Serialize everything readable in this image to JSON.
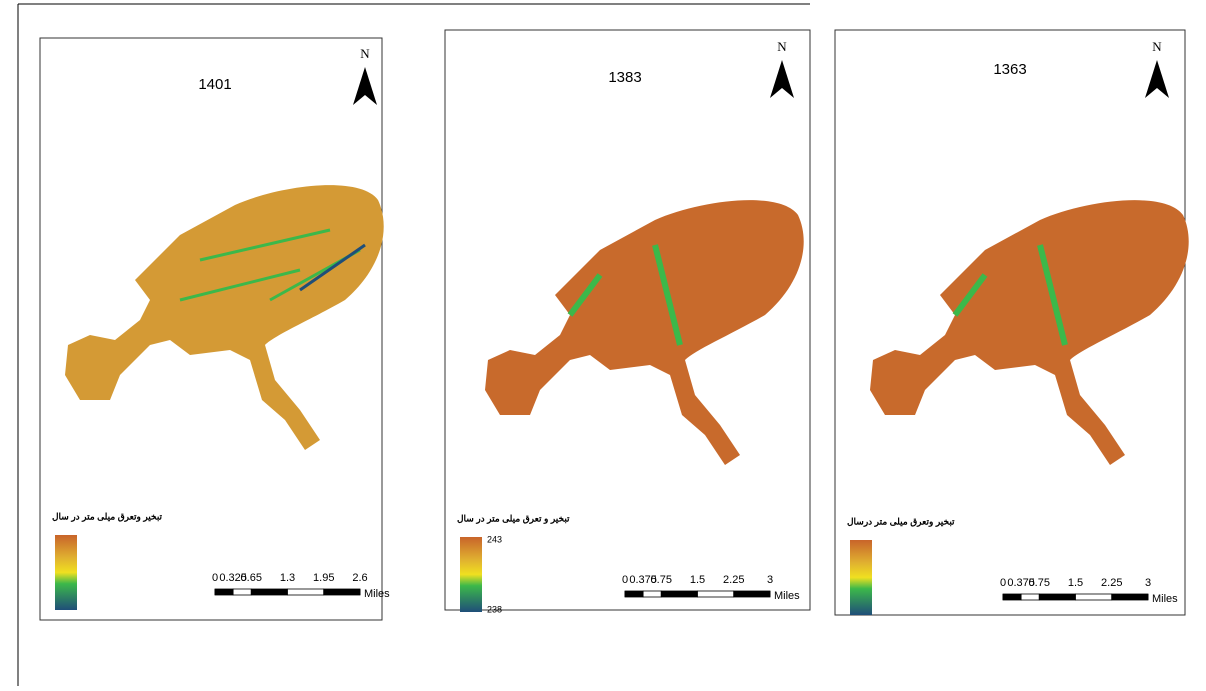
{
  "panels": [
    {
      "title": "1401",
      "north": "N",
      "legend_title": "تبخیر وتعرق میلی متر در سال",
      "legend_labels": [],
      "scale": {
        "ticks": [
          0,
          0.325,
          0.65,
          1.3,
          1.95,
          2.6
        ],
        "unit": "Miles"
      }
    },
    {
      "title": "1383",
      "north": "N",
      "legend_title": "تبخیر و تعرق میلی متر در سال",
      "legend_labels": [
        243,
        238
      ],
      "scale": {
        "ticks": [
          0,
          0.375,
          0.75,
          1.5,
          2.25,
          3
        ],
        "unit": "Miles"
      }
    },
    {
      "title": "1363",
      "north": "N",
      "legend_title": "تبخیر وتعرق میلی متر درسال",
      "legend_labels": [],
      "scale": {
        "ticks": [
          0,
          0.375,
          0.75,
          1.5,
          2.25,
          3
        ],
        "unit": "Miles"
      }
    }
  ]
}
